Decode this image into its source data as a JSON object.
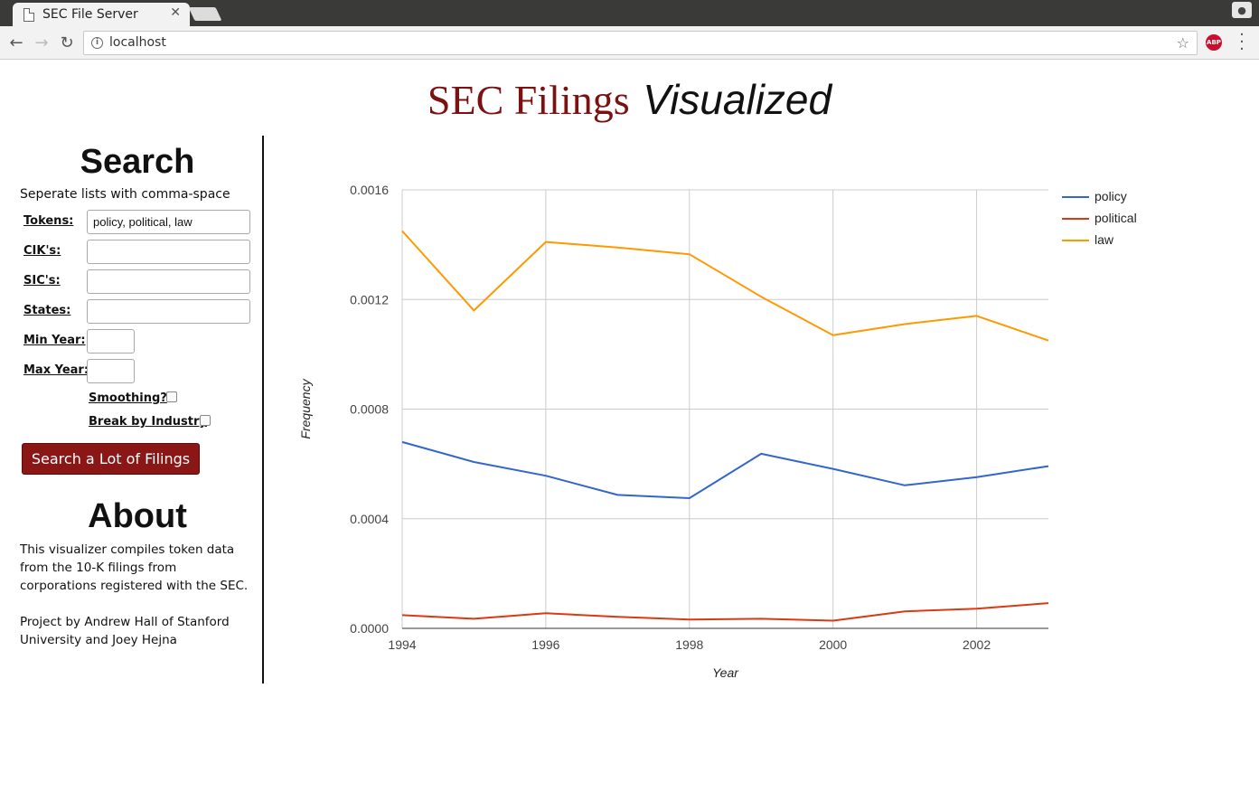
{
  "browser": {
    "tab_title": "SEC File Server",
    "tab_close": "✕",
    "url": "localhost",
    "abp_label": "ABP"
  },
  "page": {
    "title_part1": "SEC Filings",
    "title_part2": "Visualized"
  },
  "search": {
    "heading": "Search",
    "hint": "Seperate lists with comma-space",
    "fields": {
      "tokens_label": "Tokens:",
      "tokens_value": "policy, political, law",
      "ciks_label": "CIK's:",
      "ciks_value": "",
      "sics_label": "SIC's:",
      "sics_value": "",
      "states_label": "States:",
      "states_value": "",
      "min_year_label": "Min Year:",
      "min_year_value": "",
      "max_year_label": "Max Year:",
      "max_year_value": ""
    },
    "smoothing_label": "Smoothing?",
    "break_label": "Break by Industry",
    "button_label": "Search a Lot of Filings"
  },
  "about": {
    "heading": "About",
    "para1": "This visualizer compiles token data from the 10-K filings from corporations registered with the SEC.",
    "para2": "Project by Andrew Hall of Stanford University and Joey Hejna"
  },
  "chart_data": {
    "type": "line",
    "xlabel": "Year",
    "ylabel": "Frequency",
    "xlim": [
      1994,
      2003
    ],
    "ylim": [
      0,
      0.0016
    ],
    "x_ticks": [
      1994,
      1996,
      1998,
      2000,
      2002
    ],
    "x_tick_labels": [
      "1994",
      "1996",
      "1998",
      "2000",
      "2002"
    ],
    "y_ticks": [
      0,
      0.0004,
      0.0008,
      0.0012,
      0.0016
    ],
    "y_tick_labels": [
      "0.0000",
      "0.0004",
      "0.0008",
      "0.0012",
      "0.0016"
    ],
    "grid": true,
    "legend_position": "right",
    "x": [
      1994,
      1995,
      1996,
      1997,
      1998,
      1999,
      2000,
      2001,
      2002,
      2003
    ],
    "series": [
      {
        "name": "policy",
        "color": "#3366cc",
        "values": [
          0.00068,
          0.000607,
          0.000557,
          0.000487,
          0.000475,
          0.000637,
          0.000582,
          0.000522,
          0.000552,
          0.000592
        ]
      },
      {
        "name": "political",
        "color": "#dc3912",
        "values": [
          4.8e-05,
          3.5e-05,
          5.5e-05,
          4.2e-05,
          3.2e-05,
          3.5e-05,
          2.8e-05,
          6.2e-05,
          7.2e-05,
          9.2e-05
        ]
      },
      {
        "name": "law",
        "color": "#ff9900",
        "values": [
          0.00145,
          0.00116,
          0.00141,
          0.00139,
          0.001365,
          0.00121,
          0.00107,
          0.00111,
          0.00114,
          0.00105
        ]
      }
    ]
  }
}
